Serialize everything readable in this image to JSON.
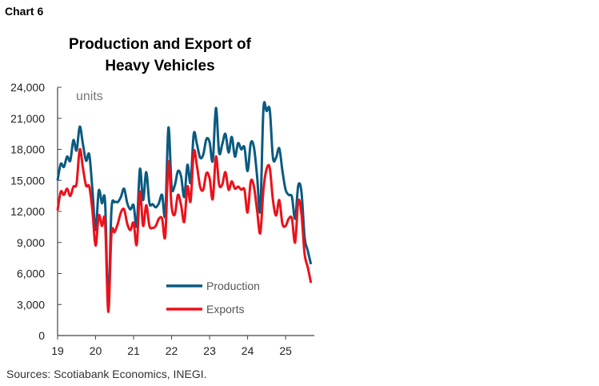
{
  "chart_label": "Chart 6",
  "source": "Sources: Scotiabank Economics, INEGI.",
  "chart_data": {
    "type": "line",
    "title": "Production and Export of Heavy Vehicles",
    "title_lines": [
      "Production and Export of",
      "Heavy Vehicles"
    ],
    "ylabel": "units",
    "xlabel": "",
    "ylim": [
      0,
      24000
    ],
    "yticks": [
      "0",
      "3,000",
      "6,000",
      "9,000",
      "12,000",
      "15,000",
      "18,000",
      "21,000",
      "24,000"
    ],
    "ytick_values": [
      0,
      3000,
      6000,
      9000,
      12000,
      15000,
      18000,
      21000,
      24000
    ],
    "xticks": [
      "19",
      "20",
      "21",
      "22",
      "23",
      "24",
      "25"
    ],
    "x_start": "2019-01",
    "x_frequency": "monthly",
    "grid": false,
    "legend_position": "bottom-right",
    "series": [
      {
        "name": "Production",
        "color": "#0b5a80",
        "values": [
          15000,
          16600,
          16300,
          17300,
          16900,
          18900,
          17900,
          20200,
          18500,
          16900,
          17500,
          14100,
          10200,
          14000,
          12800,
          12900,
          3100,
          12100,
          12900,
          12900,
          13400,
          14200,
          12800,
          12200,
          12600,
          10600,
          16100,
          13100,
          15800,
          12800,
          12700,
          12400,
          12800,
          13600,
          11700,
          20100,
          14400,
          14500,
          15900,
          15400,
          13400,
          16500,
          14800,
          19500,
          18500,
          17200,
          17500,
          19000,
          18700,
          16900,
          22000,
          17700,
          18500,
          19500,
          17700,
          19200,
          17300,
          18600,
          18000,
          18200,
          15900,
          18600,
          18200,
          15400,
          12100,
          21900,
          21700,
          21800,
          17200,
          17200,
          18100,
          15900,
          14100,
          13600,
          13400,
          11300,
          14500,
          13900,
          9500,
          8200,
          6900
        ]
      },
      {
        "name": "Exports",
        "color": "#ec111a",
        "values": [
          12100,
          13900,
          13600,
          14200,
          13500,
          14400,
          14700,
          18000,
          16200,
          14500,
          14400,
          12100,
          8700,
          11600,
          10600,
          11000,
          2300,
          9800,
          10000,
          10800,
          11900,
          12200,
          10800,
          10200,
          10900,
          8800,
          13900,
          10600,
          12600,
          10600,
          10400,
          10600,
          11300,
          11300,
          9600,
          16800,
          12500,
          11700,
          13600,
          12600,
          11000,
          14400,
          13000,
          17800,
          16400,
          14400,
          14100,
          15700,
          15200,
          13200,
          17300,
          14600,
          14600,
          15800,
          14100,
          14900,
          14200,
          14400,
          14100,
          14100,
          11900,
          14900,
          14400,
          12100,
          9900,
          14100,
          16100,
          16200,
          13100,
          11600,
          13100,
          10800,
          10600,
          11300,
          11300,
          9000,
          13000,
          11800,
          7900,
          6600,
          5100
        ]
      }
    ]
  }
}
